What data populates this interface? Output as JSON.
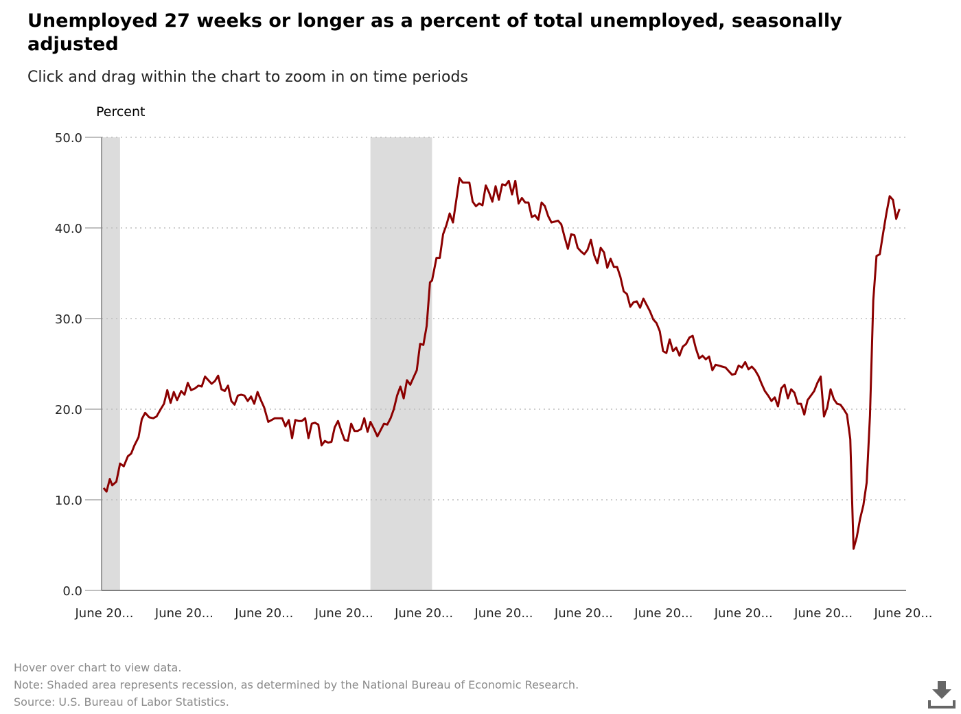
{
  "header": {
    "title": "Unemployed 27 weeks or longer as a percent of total unemployed, seasonally adjusted",
    "subtitle": "Click and drag within the chart to zoom in on time periods"
  },
  "footer": {
    "hover_note": "Hover over chart to view data.",
    "note": "Note: Shaded area represents recession, as determined by the National Bureau of Economic Research.",
    "source": "Source: U.S. Bureau of Labor Statistics."
  },
  "icons": {
    "download": "download-icon"
  },
  "colors": {
    "line": "#8b0000",
    "recession": "#dcdcdc",
    "grid": "#bdbdbd",
    "axis": "#7f7f7f"
  },
  "chart_data": {
    "type": "line",
    "title": "Unemployed 27 weeks or longer as a percent of total unemployed, seasonally adjusted",
    "ylabel": "Percent",
    "ylim": [
      0,
      50
    ],
    "yticks": [
      "0.0",
      "10.0",
      "20.0",
      "30.0",
      "40.0",
      "50.0"
    ],
    "xticks": [
      "June 20...",
      "June 20...",
      "June 20...",
      "June 20...",
      "June 20...",
      "June 20...",
      "June 20...",
      "June 20...",
      "June 20...",
      "June 20...",
      "June 20..."
    ],
    "grid": true,
    "recessions": [
      [
        0.0,
        2.25
      ],
      [
        32.75,
        40.25
      ]
    ],
    "series": [
      {
        "values": [
          [
            0.25,
            11.3
          ],
          [
            0.6,
            10.9
          ],
          [
            1.0,
            12.3
          ],
          [
            1.3,
            11.6
          ],
          [
            1.8,
            12.0
          ],
          [
            2.25,
            14.0
          ],
          [
            2.7,
            13.7
          ],
          [
            3.2,
            14.8
          ],
          [
            3.6,
            15.1
          ],
          [
            4.0,
            16.0
          ],
          [
            4.5,
            16.9
          ],
          [
            4.9,
            18.9
          ],
          [
            5.3,
            19.6
          ],
          [
            5.8,
            19.1
          ],
          [
            6.3,
            19.0
          ],
          [
            6.7,
            19.2
          ],
          [
            7.2,
            20.0
          ],
          [
            7.6,
            20.6
          ],
          [
            8.0,
            22.1
          ],
          [
            8.4,
            20.7
          ],
          [
            8.8,
            21.9
          ],
          [
            9.2,
            21.0
          ],
          [
            9.7,
            22.0
          ],
          [
            10.1,
            21.6
          ],
          [
            10.5,
            22.9
          ],
          [
            10.9,
            22.1
          ],
          [
            11.4,
            22.3
          ],
          [
            11.8,
            22.6
          ],
          [
            12.2,
            22.5
          ],
          [
            12.6,
            23.6
          ],
          [
            13.0,
            23.2
          ],
          [
            13.4,
            22.8
          ],
          [
            13.8,
            23.1
          ],
          [
            14.2,
            23.7
          ],
          [
            14.6,
            22.2
          ],
          [
            15.0,
            22.0
          ],
          [
            15.4,
            22.6
          ],
          [
            15.8,
            20.9
          ],
          [
            16.2,
            20.5
          ],
          [
            16.6,
            21.5
          ],
          [
            17.0,
            21.6
          ],
          [
            17.4,
            21.5
          ],
          [
            17.8,
            20.9
          ],
          [
            18.2,
            21.4
          ],
          [
            18.6,
            20.6
          ],
          [
            19.0,
            21.9
          ],
          [
            19.4,
            21.0
          ],
          [
            19.8,
            20.2
          ],
          [
            20.3,
            18.6
          ],
          [
            20.7,
            18.8
          ],
          [
            21.1,
            19.0
          ],
          [
            21.6,
            19.0
          ],
          [
            22.0,
            19.0
          ],
          [
            22.4,
            18.1
          ],
          [
            22.8,
            18.8
          ],
          [
            23.2,
            16.8
          ],
          [
            23.6,
            18.8
          ],
          [
            24.0,
            18.7
          ],
          [
            24.4,
            18.7
          ],
          [
            24.8,
            19.0
          ],
          [
            25.2,
            16.8
          ],
          [
            25.6,
            18.4
          ],
          [
            26.0,
            18.5
          ],
          [
            26.4,
            18.3
          ],
          [
            26.8,
            16.0
          ],
          [
            27.2,
            16.5
          ],
          [
            27.6,
            16.3
          ],
          [
            28.0,
            16.4
          ],
          [
            28.4,
            18.0
          ],
          [
            28.8,
            18.7
          ],
          [
            29.2,
            17.6
          ],
          [
            29.6,
            16.6
          ],
          [
            30.0,
            16.5
          ],
          [
            30.4,
            18.4
          ],
          [
            30.8,
            17.6
          ],
          [
            31.2,
            17.6
          ],
          [
            31.6,
            17.8
          ],
          [
            32.0,
            19.0
          ],
          [
            32.4,
            17.5
          ],
          [
            32.75,
            18.6
          ],
          [
            33.2,
            17.8
          ],
          [
            33.6,
            17.0
          ],
          [
            34.0,
            17.7
          ],
          [
            34.4,
            18.4
          ],
          [
            34.8,
            18.3
          ],
          [
            35.2,
            19.0
          ],
          [
            35.6,
            20.0
          ],
          [
            36.0,
            21.5
          ],
          [
            36.4,
            22.5
          ],
          [
            36.8,
            21.2
          ],
          [
            37.2,
            23.2
          ],
          [
            37.6,
            22.7
          ],
          [
            38.0,
            23.5
          ],
          [
            38.4,
            24.3
          ],
          [
            38.8,
            27.2
          ],
          [
            39.2,
            27.1
          ],
          [
            39.6,
            29.2
          ],
          [
            40.0,
            34.0
          ],
          [
            40.25,
            34.2
          ],
          [
            40.8,
            36.7
          ],
          [
            41.2,
            36.7
          ],
          [
            41.6,
            39.3
          ],
          [
            42.0,
            40.3
          ],
          [
            42.4,
            41.6
          ],
          [
            42.8,
            40.6
          ],
          [
            43.2,
            43.0
          ],
          [
            43.6,
            45.5
          ],
          [
            44.0,
            45.0
          ],
          [
            44.4,
            45.0
          ],
          [
            44.8,
            45.0
          ],
          [
            45.2,
            42.9
          ],
          [
            45.6,
            42.4
          ],
          [
            46.0,
            42.7
          ],
          [
            46.4,
            42.5
          ],
          [
            46.8,
            44.7
          ],
          [
            47.2,
            43.9
          ],
          [
            47.6,
            42.9
          ],
          [
            48.0,
            44.6
          ],
          [
            48.4,
            43.1
          ],
          [
            48.8,
            44.8
          ],
          [
            49.2,
            44.7
          ],
          [
            49.6,
            45.2
          ],
          [
            50.0,
            43.7
          ],
          [
            50.4,
            45.2
          ],
          [
            50.8,
            42.7
          ],
          [
            51.2,
            43.3
          ],
          [
            51.6,
            42.8
          ],
          [
            52.0,
            42.8
          ],
          [
            52.4,
            41.2
          ],
          [
            52.8,
            41.4
          ],
          [
            53.2,
            40.9
          ],
          [
            53.6,
            42.8
          ],
          [
            54.0,
            42.4
          ],
          [
            54.4,
            41.3
          ],
          [
            54.8,
            40.6
          ],
          [
            55.2,
            40.7
          ],
          [
            55.6,
            40.8
          ],
          [
            56.0,
            40.4
          ],
          [
            56.4,
            39.0
          ],
          [
            56.8,
            37.7
          ],
          [
            57.2,
            39.3
          ],
          [
            57.6,
            39.2
          ],
          [
            58.0,
            37.8
          ],
          [
            58.4,
            37.4
          ],
          [
            58.8,
            37.1
          ],
          [
            59.2,
            37.6
          ],
          [
            59.6,
            38.7
          ],
          [
            60.0,
            37.0
          ],
          [
            60.4,
            36.1
          ],
          [
            60.8,
            37.8
          ],
          [
            61.2,
            37.3
          ],
          [
            61.6,
            35.6
          ],
          [
            62.0,
            36.6
          ],
          [
            62.4,
            35.7
          ],
          [
            62.8,
            35.7
          ],
          [
            63.2,
            34.6
          ],
          [
            63.6,
            33.0
          ],
          [
            64.0,
            32.7
          ],
          [
            64.4,
            31.3
          ],
          [
            64.8,
            31.8
          ],
          [
            65.2,
            31.9
          ],
          [
            65.6,
            31.2
          ],
          [
            66.0,
            32.2
          ],
          [
            66.4,
            31.5
          ],
          [
            66.8,
            30.8
          ],
          [
            67.2,
            29.9
          ],
          [
            67.6,
            29.5
          ],
          [
            68.0,
            28.6
          ],
          [
            68.4,
            26.4
          ],
          [
            68.8,
            26.2
          ],
          [
            69.2,
            27.7
          ],
          [
            69.6,
            26.4
          ],
          [
            70.0,
            26.8
          ],
          [
            70.4,
            25.9
          ],
          [
            70.8,
            26.9
          ],
          [
            71.2,
            27.2
          ],
          [
            71.6,
            27.9
          ],
          [
            72.0,
            28.1
          ],
          [
            72.4,
            26.7
          ],
          [
            72.8,
            25.6
          ],
          [
            73.2,
            25.9
          ],
          [
            73.6,
            25.5
          ],
          [
            74.0,
            25.8
          ],
          [
            74.4,
            24.3
          ],
          [
            74.8,
            24.9
          ],
          [
            75.2,
            24.8
          ],
          [
            75.6,
            24.7
          ],
          [
            76.0,
            24.6
          ],
          [
            76.4,
            24.2
          ],
          [
            76.8,
            23.8
          ],
          [
            77.2,
            23.9
          ],
          [
            77.6,
            24.8
          ],
          [
            78.0,
            24.6
          ],
          [
            78.4,
            25.2
          ],
          [
            78.8,
            24.4
          ],
          [
            79.2,
            24.7
          ],
          [
            79.6,
            24.3
          ],
          [
            80.0,
            23.7
          ],
          [
            80.4,
            22.8
          ],
          [
            80.8,
            22.0
          ],
          [
            81.2,
            21.5
          ],
          [
            81.6,
            20.9
          ],
          [
            82.0,
            21.3
          ],
          [
            82.4,
            20.3
          ],
          [
            82.8,
            22.3
          ],
          [
            83.2,
            22.7
          ],
          [
            83.6,
            21.2
          ],
          [
            84.0,
            22.2
          ],
          [
            84.4,
            21.8
          ],
          [
            84.8,
            20.6
          ],
          [
            85.2,
            20.6
          ],
          [
            85.6,
            19.4
          ],
          [
            86.0,
            21.0
          ],
          [
            86.4,
            21.5
          ],
          [
            86.8,
            22.0
          ],
          [
            87.2,
            22.9
          ],
          [
            87.6,
            23.6
          ],
          [
            88.0,
            19.2
          ],
          [
            88.4,
            20.2
          ],
          [
            88.8,
            22.2
          ],
          [
            89.2,
            21.1
          ],
          [
            89.6,
            20.6
          ],
          [
            90.0,
            20.5
          ],
          [
            90.4,
            20.0
          ],
          [
            90.8,
            19.4
          ],
          [
            91.2,
            16.7
          ],
          [
            91.6,
            4.6
          ],
          [
            92.0,
            5.9
          ],
          [
            92.4,
            7.9
          ],
          [
            92.8,
            9.4
          ],
          [
            93.2,
            11.9
          ],
          [
            93.6,
            19.3
          ],
          [
            94.0,
            32.0
          ],
          [
            94.4,
            36.9
          ],
          [
            94.8,
            37.1
          ],
          [
            95.2,
            39.4
          ],
          [
            95.6,
            41.6
          ],
          [
            96.0,
            43.5
          ],
          [
            96.4,
            43.1
          ],
          [
            96.8,
            41.0
          ],
          [
            97.2,
            42.1
          ]
        ]
      }
    ]
  }
}
